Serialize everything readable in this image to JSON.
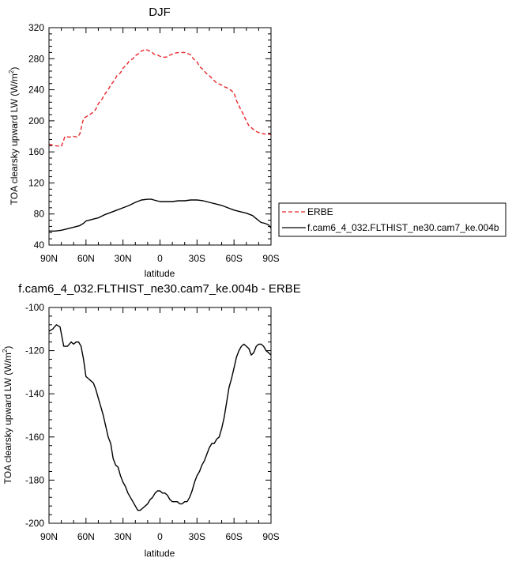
{
  "chart_data": [
    {
      "type": "line",
      "title": "DJF",
      "xlabel": "latitude",
      "ylabel": "TOA clearsky upward LW (W/m",
      "ylabel_sup": "2",
      "ylabel_end": ")",
      "xlim": [
        -90,
        90
      ],
      "ylim": [
        40,
        320
      ],
      "x_ticks": [
        -90,
        -60,
        -30,
        0,
        30,
        60,
        90
      ],
      "x_tick_labels": [
        "90N",
        "60N",
        "30N",
        "0",
        "30S",
        "60S",
        "90S"
      ],
      "y_ticks": [
        40,
        80,
        120,
        160,
        200,
        240,
        280,
        320
      ],
      "y_tick_labels": [
        "40",
        "80",
        "120",
        "160",
        "200",
        "240",
        "280",
        "320"
      ],
      "grid": false,
      "legend": "right",
      "series": [
        {
          "name": "ERBE",
          "color": "#e8262b",
          "style": "dashed",
          "x": [
            -90,
            -85,
            -80,
            -77,
            -74,
            -70,
            -67,
            -65,
            -62,
            -60,
            -57,
            -55,
            -52,
            -50,
            -47,
            -45,
            -42,
            -40,
            -37,
            -35,
            -32,
            -30,
            -27,
            -25,
            -22,
            -20,
            -17,
            -15,
            -12,
            -10,
            -7,
            -5,
            -2,
            0,
            2,
            5,
            7,
            10,
            12,
            15,
            17,
            20,
            22,
            25,
            27,
            30,
            32,
            35,
            37,
            40,
            42,
            45,
            47,
            50,
            52,
            55,
            57,
            60,
            62,
            65,
            67,
            70,
            72,
            75,
            77,
            80,
            82,
            85,
            87,
            90
          ],
          "y": [
            170,
            168,
            167,
            180,
            179,
            180,
            179,
            183,
            203,
            205,
            208,
            210,
            215,
            222,
            228,
            234,
            240,
            246,
            252,
            258,
            262,
            268,
            272,
            277,
            280,
            284,
            287,
            290,
            292,
            291,
            289,
            286,
            285,
            283,
            282,
            282,
            284,
            286,
            287,
            288,
            288,
            288,
            287,
            285,
            280,
            276,
            270,
            266,
            262,
            258,
            255,
            250,
            248,
            246,
            244,
            242,
            240,
            236,
            226,
            216,
            210,
            200,
            194,
            190,
            187,
            185,
            184,
            183,
            183,
            182
          ]
        },
        {
          "name": "f.cam6_4_032.FLTHIST_ne30.cam7_ke.004b",
          "color": "#000000",
          "style": "solid",
          "x": [
            -90,
            -85,
            -80,
            -75,
            -70,
            -65,
            -62,
            -60,
            -55,
            -50,
            -45,
            -40,
            -35,
            -30,
            -25,
            -20,
            -15,
            -10,
            -7,
            -5,
            0,
            5,
            10,
            15,
            20,
            25,
            30,
            35,
            40,
            45,
            50,
            55,
            60,
            65,
            70,
            75,
            78,
            82,
            85,
            88,
            90
          ],
          "y": [
            58,
            58,
            59,
            61,
            63,
            65,
            68,
            71,
            73,
            75,
            79,
            82,
            85,
            88,
            91,
            95,
            98,
            99,
            99,
            98,
            96,
            96,
            96,
            97,
            97,
            98,
            98,
            97,
            95,
            93,
            91,
            88,
            85,
            83,
            81,
            78,
            74,
            69,
            68,
            66,
            62
          ]
        }
      ]
    },
    {
      "type": "line",
      "title": "f.cam6_4_032.FLTHIST_ne30.cam7_ke.004b - ERBE",
      "xlabel": "latitude",
      "ylabel": "TOA clearsky upward LW (W/m",
      "ylabel_sup": "2",
      "ylabel_end": ")",
      "xlim": [
        -90,
        90
      ],
      "ylim": [
        -200,
        -100
      ],
      "x_ticks": [
        -90,
        -60,
        -30,
        0,
        30,
        60,
        90
      ],
      "x_tick_labels": [
        "90N",
        "60N",
        "30N",
        "0",
        "30S",
        "60S",
        "90S"
      ],
      "y_ticks": [
        -200,
        -180,
        -160,
        -140,
        -120,
        -100
      ],
      "y_tick_labels": [
        "-200",
        "-180",
        "-160",
        "-140",
        "-120",
        "-100"
      ],
      "grid": false,
      "series": [
        {
          "color": "#000000",
          "style": "solid",
          "x": [
            -90,
            -87,
            -84,
            -81,
            -78,
            -75,
            -72,
            -70,
            -68,
            -66,
            -64,
            -62,
            -60,
            -58,
            -56,
            -54,
            -52,
            -50,
            -48,
            -46,
            -44,
            -42,
            -40,
            -38,
            -36,
            -34,
            -32,
            -30,
            -28,
            -26,
            -24,
            -22,
            -20,
            -18,
            -16,
            -14,
            -12,
            -10,
            -8,
            -6,
            -4,
            -2,
            0,
            2,
            4,
            6,
            8,
            10,
            12,
            14,
            16,
            18,
            20,
            22,
            24,
            26,
            28,
            30,
            32,
            34,
            36,
            38,
            40,
            42,
            44,
            46,
            48,
            50,
            52,
            54,
            56,
            58,
            60,
            62,
            64,
            66,
            68,
            70,
            72,
            74,
            76,
            78,
            80,
            82,
            84,
            86,
            88,
            90
          ],
          "y": [
            -111,
            -110,
            -108,
            -109,
            -118,
            -118,
            -116,
            -117,
            -116,
            -116,
            -118,
            -124,
            -132,
            -133,
            -134,
            -135,
            -138,
            -142,
            -146,
            -150,
            -155,
            -160,
            -163,
            -170,
            -173,
            -174,
            -178,
            -181,
            -183,
            -186,
            -188,
            -190,
            -192,
            -194,
            -194,
            -193,
            -192,
            -191,
            -189,
            -188,
            -186,
            -185,
            -185,
            -186,
            -186,
            -187,
            -189,
            -190,
            -190,
            -190,
            -191,
            -191,
            -190,
            -190,
            -188,
            -185,
            -181,
            -178,
            -176,
            -173,
            -171,
            -168,
            -165,
            -163,
            -163,
            -161,
            -160,
            -156,
            -151,
            -144,
            -137,
            -133,
            -128,
            -123,
            -120,
            -118,
            -117,
            -118,
            -119,
            -122,
            -121,
            -118,
            -117,
            -117,
            -118,
            -120,
            -121,
            -122
          ]
        }
      ]
    }
  ]
}
